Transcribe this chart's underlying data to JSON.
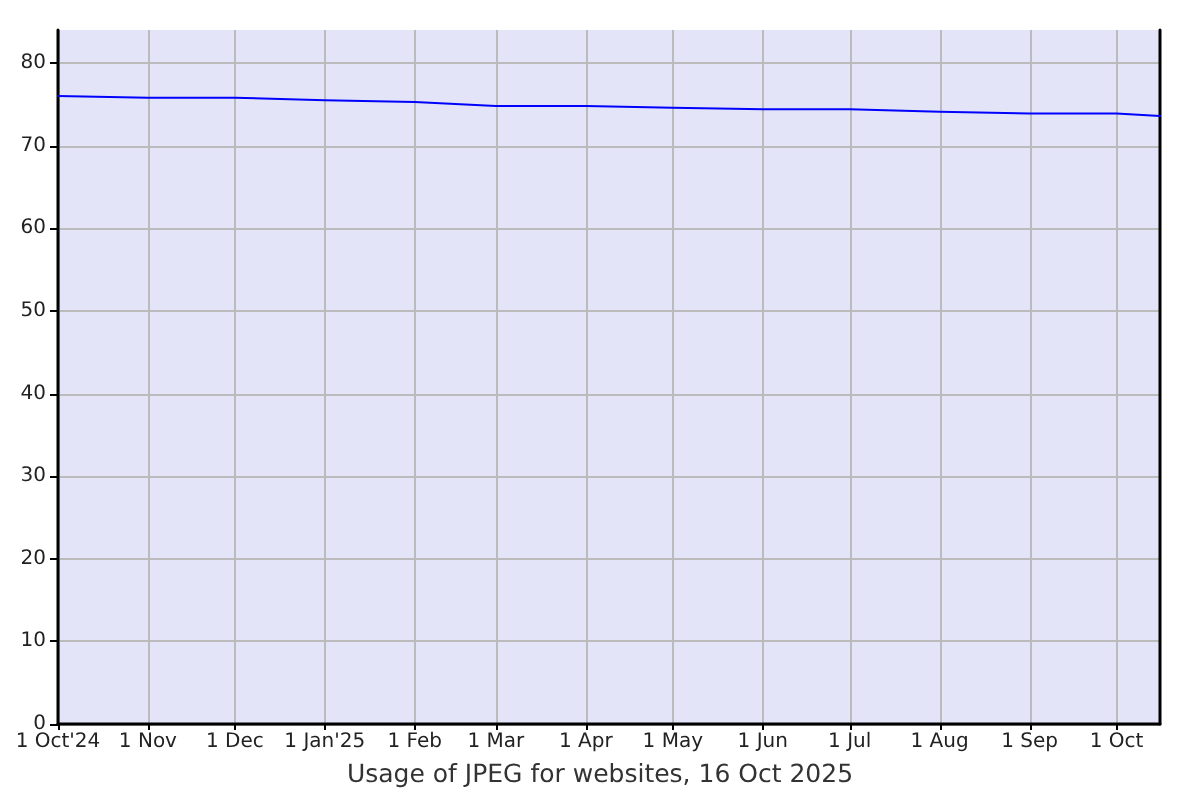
{
  "chart_data": {
    "type": "line",
    "title": "Usage of JPEG for websites, 16 Oct 2025",
    "x": [
      "2024-10-01",
      "2024-11-01",
      "2024-12-01",
      "2025-01-01",
      "2025-02-01",
      "2025-03-01",
      "2025-04-01",
      "2025-05-01",
      "2025-06-01",
      "2025-07-01",
      "2025-08-01",
      "2025-09-01",
      "2025-10-01",
      "2025-10-16"
    ],
    "series": [
      {
        "color": "#0000ff",
        "values": [
          76.0,
          75.8,
          75.8,
          75.5,
          75.3,
          74.8,
          74.8,
          74.6,
          74.4,
          74.4,
          74.1,
          73.9,
          73.9,
          73.6
        ]
      }
    ],
    "xlim": [
      "2024-10-01",
      "2025-10-16"
    ],
    "xticks": [
      {
        "value": "2024-10-01",
        "label": "1 Oct'24"
      },
      {
        "value": "2024-11-01",
        "label": "1 Nov"
      },
      {
        "value": "2024-12-01",
        "label": "1 Dec"
      },
      {
        "value": "2025-01-01",
        "label": "1 Jan'25"
      },
      {
        "value": "2025-02-01",
        "label": "1 Feb"
      },
      {
        "value": "2025-03-01",
        "label": "1 Mar"
      },
      {
        "value": "2025-04-01",
        "label": "1 Apr"
      },
      {
        "value": "2025-05-01",
        "label": "1 May"
      },
      {
        "value": "2025-06-01",
        "label": "1 Jun"
      },
      {
        "value": "2025-07-01",
        "label": "1 Jul"
      },
      {
        "value": "2025-08-01",
        "label": "1 Aug"
      },
      {
        "value": "2025-09-01",
        "label": "1 Sep"
      },
      {
        "value": "2025-10-01",
        "label": "1 Oct"
      }
    ],
    "ylim": [
      0,
      84
    ],
    "yticks": [
      0,
      10,
      20,
      30,
      40,
      50,
      60,
      70,
      80
    ],
    "grid": true,
    "marker": "none",
    "line_style": "solid"
  }
}
